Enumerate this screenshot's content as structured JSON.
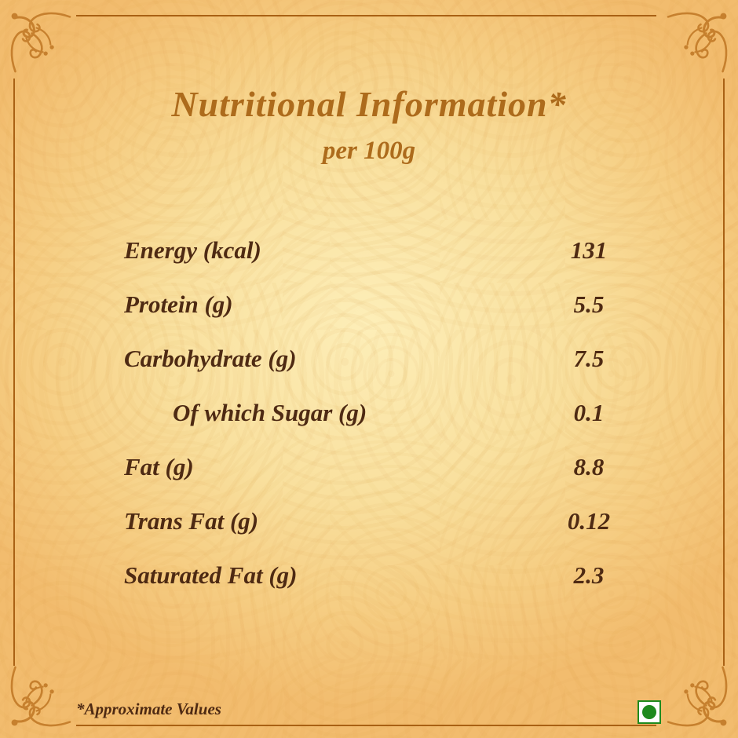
{
  "header": {
    "title": "Nutritional Information*",
    "serving": "per 100g"
  },
  "table": {
    "rows": [
      {
        "label": "Energy (kcal)",
        "value": "131",
        "indent": false
      },
      {
        "label": "Protein (g)",
        "value": "5.5",
        "indent": false
      },
      {
        "label": "Carbohydrate (g)",
        "value": "7.5",
        "indent": false
      },
      {
        "label": "Of which Sugar (g)",
        "value": "0.1",
        "indent": true
      },
      {
        "label": "Fat (g)",
        "value": "8.8",
        "indent": false
      },
      {
        "label": "Trans Fat (g)",
        "value": "0.12",
        "indent": false
      },
      {
        "label": "Saturated Fat (g)",
        "value": "2.3",
        "indent": false
      }
    ]
  },
  "footer": {
    "note": "*Approximate Values"
  },
  "icons": {
    "veg_mark": "vegetarian-mark",
    "corner_flourish": "corner-flourish"
  },
  "colors": {
    "bg_center": "#fdeeb8",
    "bg_edge": "#f2bc6e",
    "border_line": "#a96114",
    "ornament": "#c6802e",
    "title_color": "#ad6b1c",
    "text_color": "#4e2a13",
    "veg_green": "#1e8a1e"
  }
}
